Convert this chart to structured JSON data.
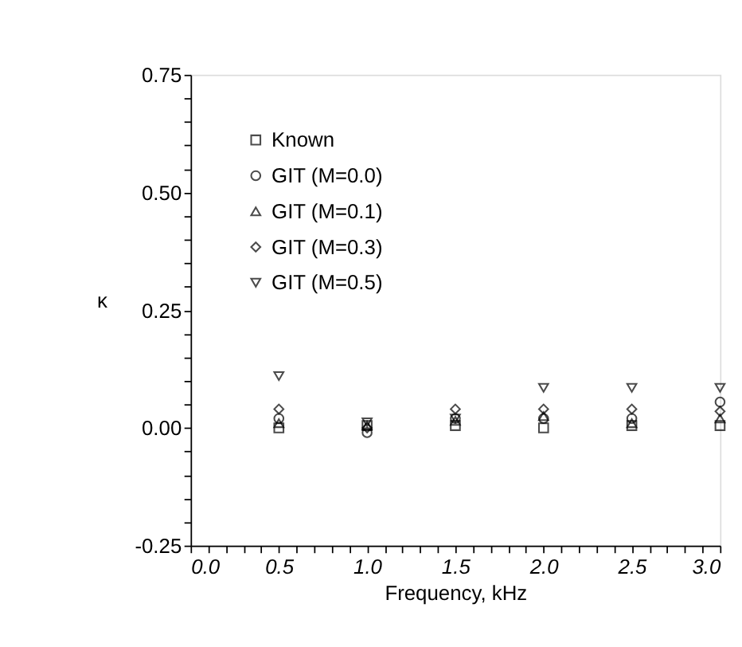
{
  "chart_data": {
    "type": "scatter",
    "xlabel": "Frequency, kHz",
    "ylabel": "κ",
    "x": [
      0.5,
      1.0,
      1.5,
      2.0,
      2.5,
      3.0
    ],
    "series": [
      {
        "name": "Known",
        "color": "#000000",
        "marker": "square",
        "values": [
          0.0,
          0.005,
          0.005,
          0.0,
          0.005,
          0.005
        ]
      },
      {
        "name": "GIT (M=0.0)",
        "color": "#000000",
        "marker": "circle",
        "values": [
          0.02,
          -0.01,
          0.02,
          0.02,
          0.02,
          0.055
        ]
      },
      {
        "name": "GIT (M=0.1)",
        "color": "#000000",
        "marker": "triangle",
        "values": [
          0.01,
          0.005,
          0.015,
          0.025,
          0.01,
          0.02
        ]
      },
      {
        "name": "GIT (M=0.3)",
        "color": "#000000",
        "marker": "diamond",
        "values": [
          0.04,
          0.0,
          0.04,
          0.04,
          0.04,
          0.035
        ]
      },
      {
        "name": "GIT (M=0.5)",
        "color": "#000000",
        "marker": "triangle-down",
        "values": [
          0.11,
          0.012,
          0.02,
          0.085,
          0.085,
          0.085
        ]
      }
    ],
    "xlim": [
      0,
      3
    ],
    "xticks": [
      {
        "value": 0,
        "label": "0.0"
      },
      {
        "value": 0.1,
        "label": null
      },
      {
        "value": 0.2,
        "label": null
      },
      {
        "value": 0.3,
        "label": null
      },
      {
        "value": 0.4,
        "label": null
      },
      {
        "value": 0.5,
        "label": "0.5"
      },
      {
        "value": 0.6,
        "label": null
      },
      {
        "value": 0.7,
        "label": null
      },
      {
        "value": 0.8,
        "label": null
      },
      {
        "value": 0.9,
        "label": null
      },
      {
        "value": 1.0,
        "label": "1.0"
      },
      {
        "value": 1.1,
        "label": null
      },
      {
        "value": 1.2,
        "label": null
      },
      {
        "value": 1.3,
        "label": null
      },
      {
        "value": 1.4,
        "label": null
      },
      {
        "value": 1.5,
        "label": "1.5"
      },
      {
        "value": 1.6,
        "label": null
      },
      {
        "value": 1.7,
        "label": null
      },
      {
        "value": 1.8,
        "label": null
      },
      {
        "value": 1.9,
        "label": null
      },
      {
        "value": 2.0,
        "label": "2.0"
      },
      {
        "value": 2.1,
        "label": null
      },
      {
        "value": 2.2,
        "label": null
      },
      {
        "value": 2.3,
        "label": null
      },
      {
        "value": 2.4,
        "label": null
      },
      {
        "value": 2.5,
        "label": "2.5"
      },
      {
        "value": 2.6,
        "label": null
      },
      {
        "value": 2.7,
        "label": null
      },
      {
        "value": 2.8,
        "label": null
      },
      {
        "value": 2.9,
        "label": null
      },
      {
        "value": 3.0,
        "label": "3.0"
      }
    ],
    "ylim": [
      -0.25,
      0.75
    ],
    "yticks": [
      {
        "value": -0.25,
        "label": "-0.25"
      },
      {
        "value": -0.2,
        "label": null
      },
      {
        "value": -0.15,
        "label": null
      },
      {
        "value": -0.1,
        "label": null
      },
      {
        "value": -0.05,
        "label": null
      },
      {
        "value": 0,
        "label": "0.00"
      },
      {
        "value": 0.05,
        "label": null
      },
      {
        "value": 0.1,
        "label": null
      },
      {
        "value": 0.15,
        "label": null
      },
      {
        "value": 0.2,
        "label": null
      },
      {
        "value": 0.25,
        "label": "0.25"
      },
      {
        "value": 0.3,
        "label": null
      },
      {
        "value": 0.35,
        "label": null
      },
      {
        "value": 0.4,
        "label": null
      },
      {
        "value": 0.45,
        "label": null
      },
      {
        "value": 0.5,
        "label": "0.50"
      },
      {
        "value": 0.55,
        "label": null
      },
      {
        "value": 0.6,
        "label": null
      },
      {
        "value": 0.65,
        "label": null
      },
      {
        "value": 0.7,
        "label": null
      },
      {
        "value": 0.75,
        "label": "0.75"
      }
    ],
    "grid": false,
    "legend": "top left"
  }
}
